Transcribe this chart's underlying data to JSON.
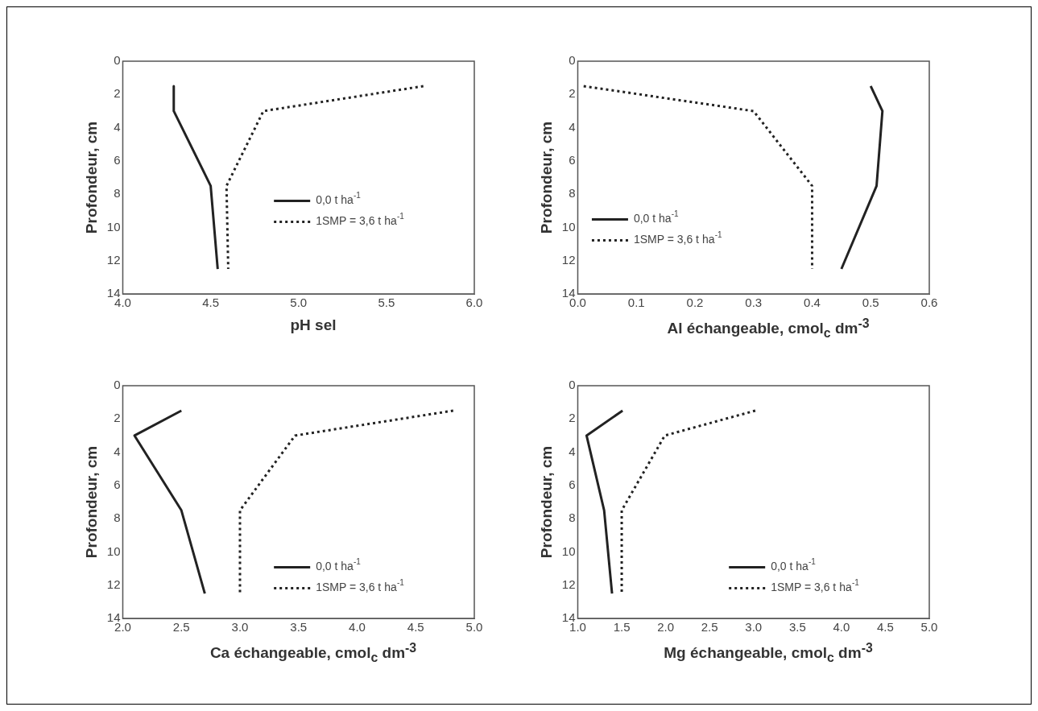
{
  "chart_data": [
    {
      "type": "line",
      "xlabel": "pH sel",
      "ylabel": "Profondeur, cm",
      "xlim": [
        4,
        6
      ],
      "xticks": [
        {
          "value": 4,
          "label": "4.0"
        },
        {
          "value": 4.5,
          "label": "4.5"
        },
        {
          "value": 5,
          "label": "5.0"
        },
        {
          "value": 5.5,
          "label": "5.5"
        },
        {
          "value": 6,
          "label": "6.0"
        }
      ],
      "ylim": [
        14,
        0
      ],
      "yticks": [
        0,
        2,
        4,
        6,
        8,
        10,
        12,
        14
      ],
      "legend": "right",
      "series": [
        {
          "name": "0,0 t ha$^{-1}$",
          "color": "#222222",
          "line_style": "solid",
          "x": [
            4.29,
            4.29,
            4.5,
            4.54
          ],
          "values": [
            1.5,
            3,
            7.5,
            12.5
          ]
        },
        {
          "name": "1SMP = 3,6 t ha$^{-1}$",
          "color": "#222222",
          "line_style": "dotted",
          "x": [
            5.71,
            4.8,
            4.59,
            4.6
          ],
          "values": [
            1.5,
            3,
            7.5,
            12.5
          ]
        }
      ]
    },
    {
      "type": "line",
      "xlabel": "Al échangeable, cmol$_{c}$ dm$^{-3}$",
      "ylabel": "Profondeur, cm",
      "xlim": [
        0,
        0.6
      ],
      "xticks": [
        {
          "value": 0,
          "label": "0.0"
        },
        {
          "value": 0.1,
          "label": "0.1"
        },
        {
          "value": 0.2,
          "label": "0.2"
        },
        {
          "value": 0.3,
          "label": "0.3"
        },
        {
          "value": 0.4,
          "label": "0.4"
        },
        {
          "value": 0.5,
          "label": "0.5"
        },
        {
          "value": 0.6,
          "label": "0.6"
        }
      ],
      "ylim": [
        14,
        0
      ],
      "yticks": [
        0,
        2,
        4,
        6,
        8,
        10,
        12,
        14
      ],
      "legend": "left",
      "series": [
        {
          "name": "0,0 t ha$^{-1}$",
          "color": "#222222",
          "line_style": "solid",
          "x": [
            0.5,
            0.52,
            0.51,
            0.45
          ],
          "values": [
            1.5,
            3,
            7.5,
            12.5
          ]
        },
        {
          "name": "1SMP = 3,6 t ha$^{-1}$",
          "color": "#222222",
          "line_style": "dotted",
          "x": [
            0.01,
            0.3,
            0.4,
            0.4
          ],
          "values": [
            1.5,
            3,
            7.5,
            12.5
          ]
        }
      ]
    },
    {
      "type": "line",
      "xlabel": "Ca échangeable, cmol$_{c}$ dm$^{-3}$",
      "ylabel": "Profondeur, cm",
      "xlim": [
        2,
        5
      ],
      "xticks": [
        {
          "value": 2,
          "label": "2.0"
        },
        {
          "value": 2.5,
          "label": "2.5"
        },
        {
          "value": 3,
          "label": "3.0"
        },
        {
          "value": 3.5,
          "label": "3.5"
        },
        {
          "value": 4,
          "label": "4.0"
        },
        {
          "value": 4.5,
          "label": "4.5"
        },
        {
          "value": 5,
          "label": "5.0"
        }
      ],
      "ylim": [
        14,
        0
      ],
      "yticks": [
        0,
        2,
        4,
        6,
        8,
        10,
        12,
        14
      ],
      "legend": "bottom right",
      "series": [
        {
          "name": "0,0 t ha$^{-1}$",
          "color": "#222222",
          "line_style": "solid",
          "x": [
            2.5,
            2.1,
            2.5,
            2.7
          ],
          "values": [
            1.5,
            3,
            7.5,
            12.5
          ]
        },
        {
          "name": "1SMP = 3,6 t ha$^{-1}$",
          "color": "#222222",
          "line_style": "dotted",
          "x": [
            4.82,
            3.47,
            3,
            3
          ],
          "values": [
            1.5,
            3,
            7.5,
            12.5
          ]
        }
      ]
    },
    {
      "type": "line",
      "xlabel": "Mg échangeable, cmol$_{c}$ dm$^{-3}$",
      "ylabel": "Profondeur, cm",
      "xlim": [
        1,
        5
      ],
      "xticks": [
        {
          "value": 1,
          "label": "1.0"
        },
        {
          "value": 1.5,
          "label": "1.5"
        },
        {
          "value": 2,
          "label": "2.0"
        },
        {
          "value": 2.5,
          "label": "2.5"
        },
        {
          "value": 3,
          "label": "3.0"
        },
        {
          "value": 3.5,
          "label": "3.5"
        },
        {
          "value": 4,
          "label": "4.0"
        },
        {
          "value": 4.5,
          "label": "4.5"
        },
        {
          "value": 5,
          "label": "5.0"
        }
      ],
      "ylim": [
        14,
        0
      ],
      "yticks": [
        0,
        2,
        4,
        6,
        8,
        10,
        12,
        14
      ],
      "legend": "bottom right",
      "series": [
        {
          "name": "0,0 t ha$^{-1}$",
          "color": "#222222",
          "line_style": "solid",
          "x": [
            1.51,
            1.1,
            1.3,
            1.39
          ],
          "values": [
            1.5,
            3,
            7.5,
            12.5
          ]
        },
        {
          "name": "1SMP = 3,6 t ha$^{-1}$",
          "color": "#222222",
          "line_style": "dotted",
          "x": [
            3.02,
            1.99,
            1.5,
            1.5
          ],
          "values": [
            1.5,
            3,
            7.5,
            12.5
          ]
        }
      ]
    }
  ]
}
